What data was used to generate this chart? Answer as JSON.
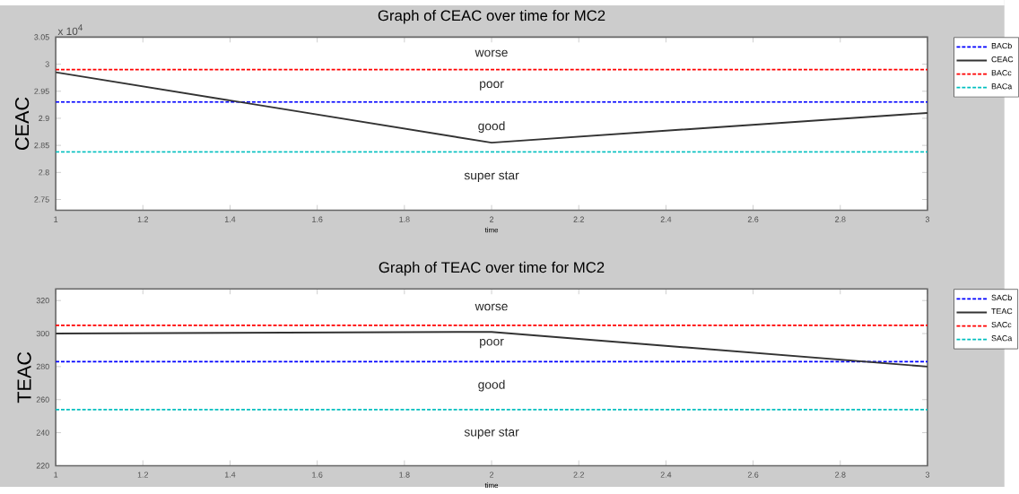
{
  "chart_data": [
    {
      "type": "line",
      "title": "Graph of CEAC over time for MC2",
      "xlabel": "time",
      "ylabel": "CEAC",
      "xlim": [
        1,
        3
      ],
      "xticks": [
        1,
        1.2,
        1.4,
        1.6,
        1.8,
        2,
        2.2,
        2.4,
        2.6,
        2.8,
        3
      ],
      "ylim": [
        2.73,
        3.05
      ],
      "yticks": [
        2.75,
        2.8,
        2.85,
        2.9,
        2.95,
        3,
        3.05
      ],
      "grid": false,
      "legend": "right",
      "marker": "none",
      "series": [
        {
          "name": "BACb",
          "color": "#0000ff",
          "x": [
            1,
            3
          ],
          "values": [
            2.93,
            2.93
          ],
          "line_style": "dashed"
        },
        {
          "name": "CEAC",
          "color": "#333333",
          "x": [
            1,
            2,
            3
          ],
          "values": [
            2.985,
            2.855,
            2.91
          ],
          "line_style": "solid"
        },
        {
          "name": "BACc",
          "color": "#ff0000",
          "x": [
            1,
            3
          ],
          "values": [
            2.99,
            2.99
          ],
          "line_style": "dashed"
        },
        {
          "name": "BACa",
          "color": "#00bfbf",
          "x": [
            1,
            3
          ],
          "values": [
            2.838,
            2.838
          ],
          "line_style": "dashed"
        }
      ],
      "annotations": [
        "x 10$^{4}$",
        "worse",
        "poor",
        "good",
        "super star"
      ]
    },
    {
      "type": "line",
      "title": "Graph of TEAC over time for MC2",
      "xlabel": "time",
      "ylabel": "TEAC",
      "xlim": [
        1,
        3
      ],
      "xticks": [
        1,
        1.2,
        1.4,
        1.6,
        1.8,
        2,
        2.2,
        2.4,
        2.6,
        2.8,
        3
      ],
      "ylim": [
        220,
        327
      ],
      "yticks": [
        220,
        240,
        260,
        280,
        300,
        320
      ],
      "grid": false,
      "legend": "right",
      "marker": "none",
      "series": [
        {
          "name": "SACb",
          "color": "#0000ff",
          "x": [
            1,
            3
          ],
          "values": [
            283,
            283
          ],
          "line_style": "dashed"
        },
        {
          "name": "TEAC",
          "color": "#333333",
          "x": [
            1,
            2,
            3
          ],
          "values": [
            300,
            301,
            280
          ],
          "line_style": "solid"
        },
        {
          "name": "SACc",
          "color": "#ff0000",
          "x": [
            1,
            3
          ],
          "values": [
            305,
            305
          ],
          "line_style": "dashed"
        },
        {
          "name": "SACa",
          "color": "#00bfbf",
          "x": [
            1,
            3
          ],
          "values": [
            254,
            254
          ],
          "line_style": "dashed"
        }
      ],
      "annotations": [
        "worse",
        "poor",
        "good",
        "super star"
      ]
    }
  ]
}
